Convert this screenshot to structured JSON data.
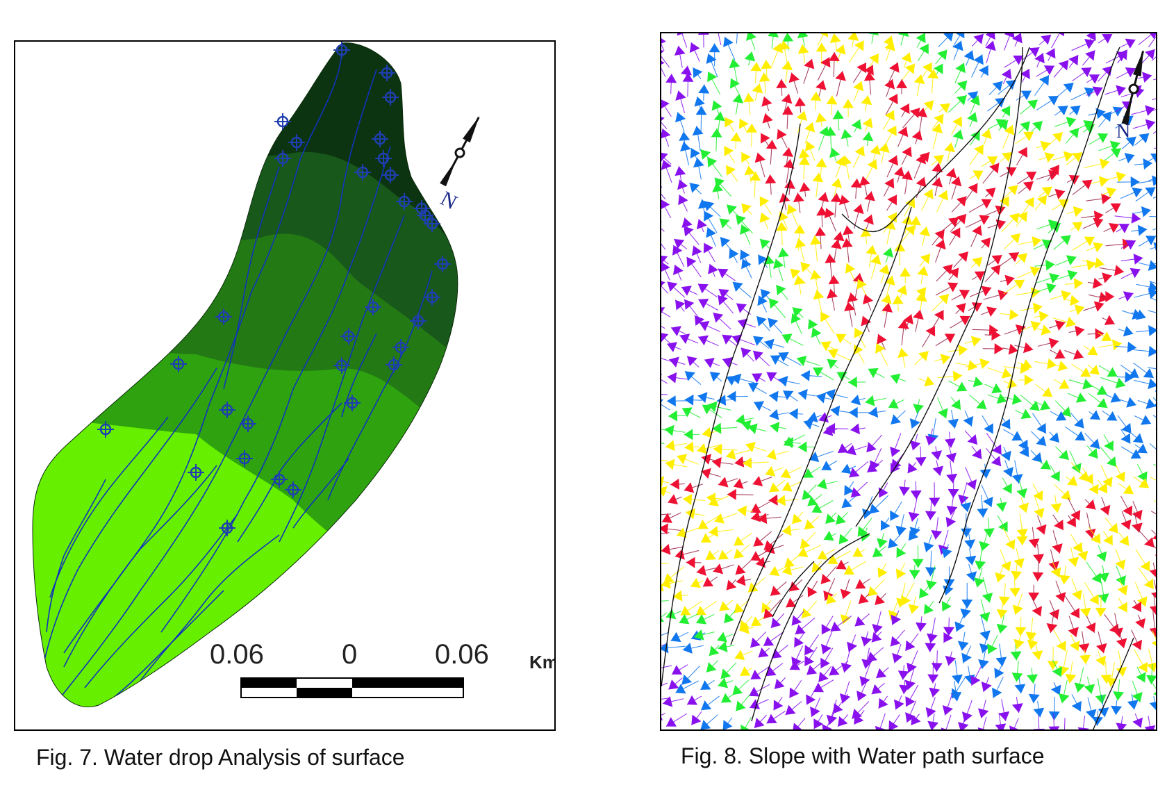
{
  "figures": [
    {
      "id": "fig7",
      "caption": "Fig. 7. Water drop Analysis of surface",
      "north_label": "N",
      "scale_bar": {
        "labels": [
          "0.06",
          "0",
          "0.06"
        ],
        "unit": "Km"
      },
      "zone_colors": [
        "#66f000",
        "#2ea30f",
        "#237a14",
        "#18581a",
        "#0c3410"
      ],
      "flow_color": "#1133bb",
      "marker_color": "#1f3fb0"
    },
    {
      "id": "fig8",
      "caption": "Fig. 8. Slope with Water path surface",
      "north_label": "N",
      "slope_colors": [
        "#ee1133",
        "#ffee00",
        "#22ee33",
        "#1177ee",
        "#8811ee"
      ],
      "path_color": "#111111"
    }
  ]
}
